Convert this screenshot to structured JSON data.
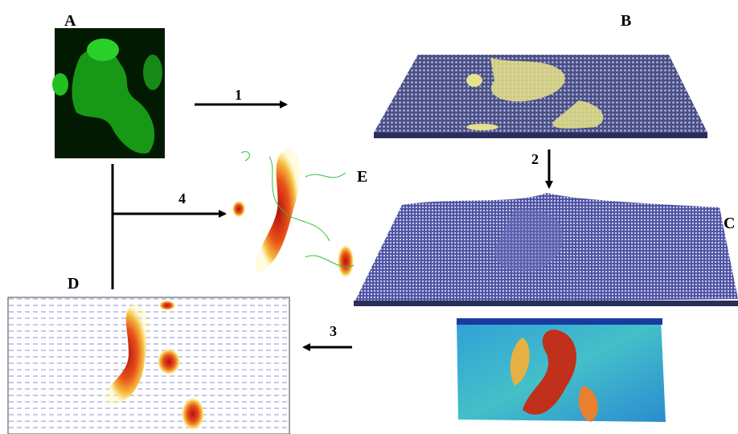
{
  "panels": [
    {
      "label": "A"
    },
    {
      "label": "B"
    },
    {
      "label": "C"
    },
    {
      "label": "D"
    },
    {
      "label": "E"
    }
  ],
  "arrows": [
    {
      "label": "1"
    },
    {
      "label": "2"
    },
    {
      "label": "3"
    },
    {
      "label": "4"
    }
  ]
}
